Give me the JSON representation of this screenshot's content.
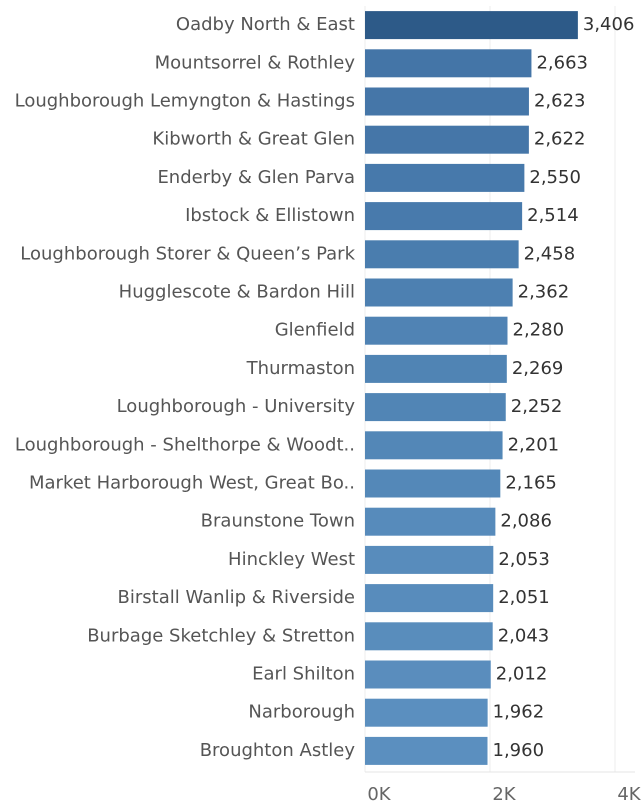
{
  "chart_data": {
    "type": "barh",
    "categories": [
      "Oadby North & East",
      "Mountsorrel & Rothley",
      "Loughborough Lemyngton & Hastings",
      "Kibworth & Great Glen",
      "Enderby & Glen Parva",
      "Ibstock & Ellistown",
      "Loughborough Storer & Queen’s Park",
      "Hugglescote & Bardon Hill",
      "Glenfield",
      "Thurmaston",
      "Loughborough - University",
      "Loughborough - Shelthorpe & Woodt..",
      "Market Harborough West, Great Bo..",
      "Braunstone Town",
      "Hinckley West",
      "Birstall Wanlip & Riverside",
      "Burbage Sketchley & Stretton",
      "Earl Shilton",
      "Narborough",
      "Broughton Astley"
    ],
    "values": [
      3406,
      2663,
      2623,
      2622,
      2550,
      2514,
      2458,
      2362,
      2280,
      2269,
      2252,
      2201,
      2165,
      2086,
      2053,
      2051,
      2043,
      2012,
      1962,
      1960
    ],
    "value_labels": [
      "3,406",
      "2,663",
      "2,623",
      "2,622",
      "2,550",
      "2,514",
      "2,458",
      "2,362",
      "2,280",
      "2,269",
      "2,252",
      "2,201",
      "2,165",
      "2,086",
      "2,053",
      "2,051",
      "2,043",
      "2,012",
      "1,962",
      "1,960"
    ],
    "colors": [
      "#2d5a88",
      "#4475a7",
      "#4576a8",
      "#4576a8",
      "#4779ab",
      "#487aac",
      "#4a7dae",
      "#4d80b1",
      "#5083b4",
      "#5084b4",
      "#5185b5",
      "#5387b7",
      "#5488b8",
      "#578bbb",
      "#588cbc",
      "#588cbc",
      "#598dbc",
      "#5a8dbd",
      "#5b8fbf",
      "#5b8fbf"
    ],
    "xlim": [
      0,
      4000
    ],
    "xticks": [
      {
        "value": 0,
        "label": "0K"
      },
      {
        "value": 2000,
        "label": "2K"
      },
      {
        "value": 4000,
        "label": "4K"
      }
    ],
    "grid": true
  }
}
